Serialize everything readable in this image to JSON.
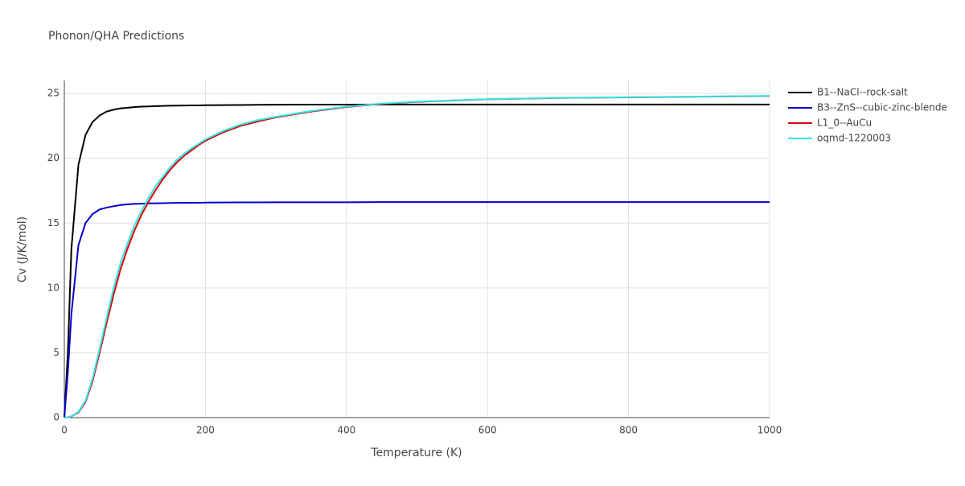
{
  "chart_data": {
    "type": "line",
    "title": "Phonon/QHA Predictions",
    "x_label": "Temperature (K)",
    "y_label": "Cv (J/K/mol)",
    "x": [
      0,
      5,
      10,
      20,
      30,
      40,
      50,
      60,
      70,
      80,
      90,
      100,
      110,
      120,
      130,
      140,
      150,
      160,
      170,
      180,
      190,
      200,
      225,
      250,
      275,
      300,
      350,
      400,
      450,
      500,
      600,
      700,
      800,
      900,
      1000
    ],
    "series": [
      {
        "name": "B1--NaCl--rock-salt",
        "color": "#000000",
        "values": [
          0,
          5,
          13,
          19.5,
          21.8,
          22.8,
          23.3,
          23.6,
          23.75,
          23.85,
          23.9,
          23.95,
          23.98,
          24.0,
          24.02,
          24.04,
          24.05,
          24.06,
          24.07,
          24.08,
          24.08,
          24.09,
          24.1,
          24.11,
          24.12,
          24.13,
          24.14,
          24.14,
          24.15,
          24.15,
          24.15,
          24.15,
          24.15,
          24.15,
          24.15
        ]
      },
      {
        "name": "B3--ZnS--cubic-zinc-blende",
        "color": "#0000cc",
        "values": [
          0,
          3.5,
          8,
          13.3,
          15,
          15.7,
          16.05,
          16.2,
          16.3,
          16.4,
          16.45,
          16.48,
          16.5,
          16.52,
          16.53,
          16.54,
          16.55,
          16.56,
          16.56,
          16.57,
          16.57,
          16.58,
          16.59,
          16.6,
          16.6,
          16.61,
          16.61,
          16.61,
          16.62,
          16.62,
          16.62,
          16.62,
          16.62,
          16.62,
          16.62
        ]
      },
      {
        "name": "L1_0--AuCu",
        "color": "#dd0000",
        "values": [
          0,
          0.02,
          0.1,
          0.4,
          1.2,
          2.8,
          5.0,
          7.3,
          9.5,
          11.5,
          13.1,
          14.5,
          15.7,
          16.7,
          17.6,
          18.4,
          19.1,
          19.7,
          20.2,
          20.6,
          21.0,
          21.35,
          22.0,
          22.5,
          22.85,
          23.15,
          23.6,
          23.95,
          24.2,
          24.35,
          24.55,
          24.65,
          24.7,
          24.75,
          24.8
        ]
      },
      {
        "name": "oqmd-1220003",
        "color": "#2ee8e8",
        "values": [
          0,
          0.02,
          0.1,
          0.45,
          1.3,
          3.0,
          5.3,
          7.7,
          10.0,
          12.0,
          13.5,
          14.9,
          16.0,
          17.0,
          17.9,
          18.6,
          19.3,
          19.9,
          20.35,
          20.75,
          21.1,
          21.45,
          22.1,
          22.6,
          22.95,
          23.2,
          23.65,
          23.98,
          24.22,
          24.37,
          24.56,
          24.66,
          24.71,
          24.76,
          24.81
        ]
      }
    ],
    "xlim": [
      0,
      1000
    ],
    "xticks": [
      0,
      200,
      400,
      600,
      800,
      1000
    ],
    "ylim": [
      0,
      26
    ],
    "yticks": [
      0,
      5,
      10,
      15,
      20,
      25
    ],
    "grid": true
  }
}
